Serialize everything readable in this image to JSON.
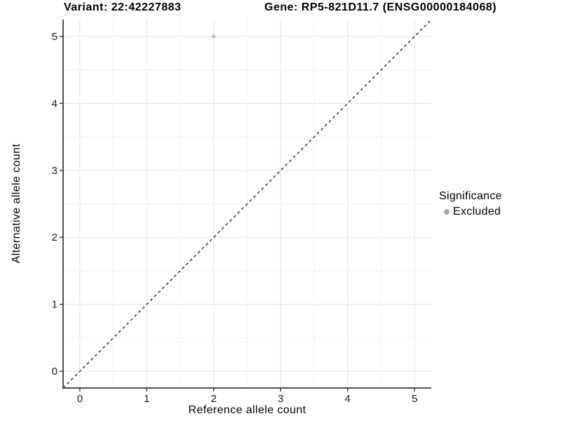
{
  "header": {
    "variant_title": "Variant: 22:42227883",
    "gene_title": "Gene: RP5-821D11.7 (ENSG00000184068)"
  },
  "chart_data": {
    "type": "scatter",
    "xlabel": "Reference allele count",
    "ylabel": "Alternative allele count",
    "xlim": [
      -0.25,
      5.25
    ],
    "ylim": [
      -0.25,
      5.25
    ],
    "xticks": [
      0,
      1,
      2,
      3,
      4,
      5
    ],
    "yticks": [
      0,
      1,
      2,
      3,
      4,
      5
    ],
    "grid": "major and minor, minor at 0.5 steps",
    "points": [
      {
        "x": 2,
        "y": 5,
        "series": "Excluded"
      }
    ],
    "reference_line": {
      "slope": 1,
      "intercept": 0,
      "style": "dashed"
    },
    "legend": {
      "title": "Significance",
      "position": "right",
      "entries": [
        {
          "label": "Excluded",
          "color": "#a8a8a8"
        }
      ]
    }
  },
  "colors": {
    "background": "#ffffff",
    "major_grid": "#e3e3e3",
    "minor_grid": "#f1f1f1",
    "axis_line": "#3c3c3c",
    "tick_mark": "#333333",
    "tick_label": "#1a1a1a",
    "point_fill": "#bdbdbd",
    "reference_line": "#000000"
  }
}
